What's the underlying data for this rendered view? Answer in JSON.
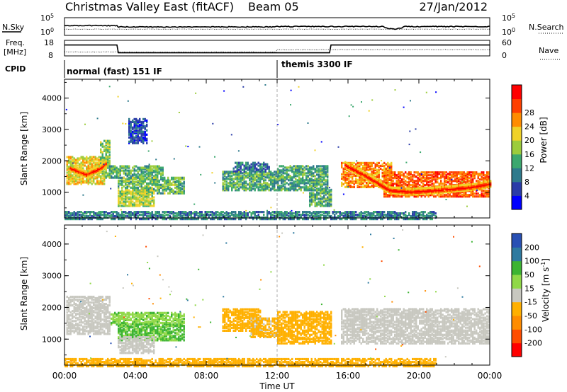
{
  "header": {
    "station": "Christmas Valley East (fitACF)",
    "beam": "Beam 05",
    "date": "27/Jan/2012"
  },
  "strips": {
    "nsky_label": "N.Sky",
    "nsearch_label": "N.Search",
    "freq_label": "Freq.",
    "freq_unit": "[MHz]",
    "nave_label": "Nave",
    "cpid_label": "CPID",
    "left_ticks_top": [
      "10^5",
      "10^0"
    ],
    "right_ticks_top": [
      "10^5",
      "10^0"
    ],
    "left_ticks_mid": [
      "18",
      "8"
    ],
    "right_ticks_mid": [
      "60",
      "0"
    ],
    "cpid_modes": [
      {
        "label": "normal (fast) 151 IF",
        "start": 0,
        "end": 12
      },
      {
        "label": "themis 3300 IF",
        "start": 12,
        "end": 24
      }
    ]
  },
  "chart_data": [
    {
      "type": "heatmap",
      "name": "power",
      "ylabel": "Slant Range [km]",
      "xlabel": "Time UT",
      "xlim": [
        0,
        24
      ],
      "ylim": [
        180,
        4600
      ],
      "x_ticks": [
        "00:00",
        "04:00",
        "08:00",
        "12:00",
        "16:00",
        "20:00",
        "00:00"
      ],
      "y_ticks": [
        1000,
        2000,
        3000,
        4000
      ],
      "colorbar": {
        "label": "Power [dB]",
        "ticks": [
          "4",
          "8",
          "12",
          "16",
          "20",
          "24",
          "28"
        ],
        "range": [
          0,
          30
        ],
        "colors": [
          "#0000ff",
          "#2a3ca8",
          "#2e7a8c",
          "#3ca86e",
          "#9ccc3c",
          "#f0d228",
          "#ff8c00",
          "#ff4000",
          "#ff0000"
        ]
      },
      "bands": [
        {
          "t0": 0.1,
          "t1": 2.3,
          "r0": 1300,
          "r1": 2200,
          "level": 18
        },
        {
          "t0": 2.0,
          "t1": 2.6,
          "r0": 1500,
          "r1": 2700,
          "level": 14
        },
        {
          "t0": 2.5,
          "t1": 5.5,
          "r0": 1500,
          "r1": 1900,
          "level": 12
        },
        {
          "t0": 3.0,
          "t1": 6.7,
          "r0": 1000,
          "r1": 1500,
          "level": 13
        },
        {
          "t0": 3.0,
          "t1": 5.0,
          "r0": 600,
          "r1": 1100,
          "level": 16
        },
        {
          "t0": 3.6,
          "t1": 4.6,
          "r0": 2600,
          "r1": 3400,
          "level": 6
        },
        {
          "t0": 8.9,
          "t1": 12.0,
          "r0": 1100,
          "r1": 1700,
          "level": 12
        },
        {
          "t0": 9.5,
          "t1": 11.5,
          "r0": 1700,
          "r1": 2000,
          "level": 8
        },
        {
          "t0": 12.0,
          "t1": 14.8,
          "r0": 1100,
          "r1": 1900,
          "level": 11
        },
        {
          "t0": 13.8,
          "t1": 15.0,
          "r0": 600,
          "r1": 1100,
          "level": 12
        },
        {
          "t0": 15.6,
          "t1": 18.5,
          "r0": 1200,
          "r1": 2000,
          "level": 22
        },
        {
          "t0": 18.0,
          "t1": 24.0,
          "r0": 900,
          "r1": 1700,
          "level": 24
        },
        {
          "t0": 0.0,
          "t1": 21.0,
          "r0": 180,
          "r1": 420,
          "level": 9
        }
      ],
      "ridges": [
        {
          "t": [
            0.3,
            1.2,
            2.0,
            2.3
          ],
          "r": [
            1800,
            1600,
            1800,
            1950
          ],
          "level": 28
        },
        {
          "t": [
            15.8,
            17.0,
            18.3,
            19.5,
            21.0,
            23.0,
            24.0
          ],
          "r": [
            1900,
            1550,
            1100,
            1050,
            1100,
            1200,
            1300
          ],
          "level": 29
        }
      ]
    },
    {
      "type": "heatmap",
      "name": "velocity",
      "ylabel": "Slant Range [km]",
      "xlabel": "Time UT",
      "xlim": [
        0,
        24
      ],
      "ylim": [
        180,
        4600
      ],
      "x_ticks": [
        "00:00",
        "04:00",
        "08:00",
        "12:00",
        "16:00",
        "20:00",
        "00:00"
      ],
      "y_ticks": [
        1000,
        2000,
        3000,
        4000
      ],
      "colorbar": {
        "label": "Velocity [m s",
        "label_sup": "-1",
        "label_end": "]",
        "ticks": [
          "200",
          "100",
          "50",
          "15",
          "-15",
          "-50",
          "-100",
          "-200"
        ],
        "range": [
          -250,
          250
        ],
        "colors": [
          "#ff0000",
          "#ff4d00",
          "#ff8c00",
          "#ffb000",
          "#c8c8c0",
          "#90d848",
          "#3cb432",
          "#2e7aa0",
          "#2850b4"
        ]
      },
      "bands": [
        {
          "t0": 0.1,
          "t1": 2.6,
          "r0": 1200,
          "r1": 2400,
          "level": 0
        },
        {
          "t0": 2.6,
          "t1": 6.7,
          "r0": 1500,
          "r1": 1900,
          "level": 70
        },
        {
          "t0": 3.0,
          "t1": 6.7,
          "r0": 1000,
          "r1": 1500,
          "level": 90
        },
        {
          "t0": 3.0,
          "t1": 5.0,
          "r0": 600,
          "r1": 1100,
          "level": 0
        },
        {
          "t0": 8.9,
          "t1": 11.0,
          "r0": 1300,
          "r1": 2000,
          "level": -60
        },
        {
          "t0": 10.5,
          "t1": 12.0,
          "r0": 1100,
          "r1": 1700,
          "level": -40
        },
        {
          "t0": 12.0,
          "t1": 15.0,
          "r0": 900,
          "r1": 1900,
          "level": -50
        },
        {
          "t0": 15.6,
          "t1": 24.0,
          "r0": 900,
          "r1": 2000,
          "level": 0
        },
        {
          "t0": 0.0,
          "t1": 21.0,
          "r0": 180,
          "r1": 420,
          "level": -60
        }
      ],
      "ridges": []
    }
  ]
}
